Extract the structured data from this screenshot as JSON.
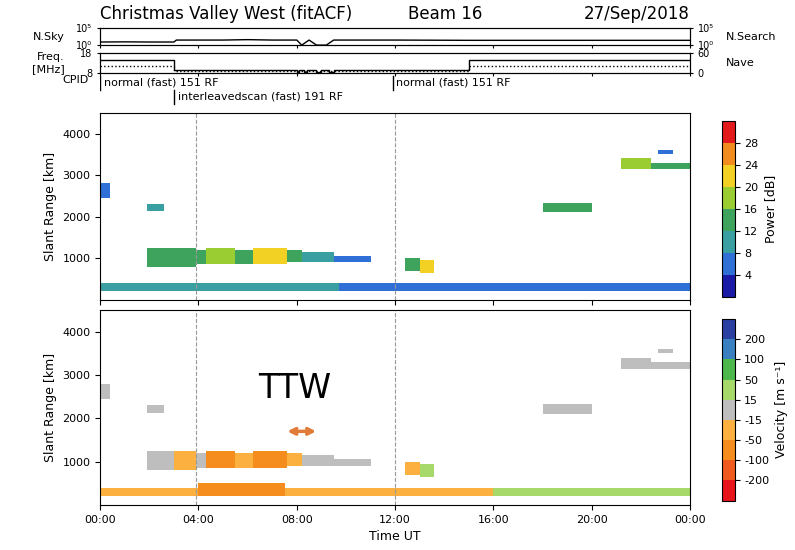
{
  "header": {
    "title": "Christmas Valley West (fitACF)",
    "subtitle": "Beam 16",
    "date": "27/Sep/2018"
  },
  "chart_data": [
    {
      "type": "line",
      "log": "y",
      "xlim": [
        0,
        24
      ],
      "xticks": [
        0,
        4,
        8,
        12,
        16,
        20,
        24
      ],
      "tick_labels": "y",
      "ylim": [
        1,
        100000
      ],
      "yticks": [
        {
          "value": 1,
          "label": "10⁰"
        },
        {
          "value": 100000,
          "label": "10⁵"
        }
      ],
      "y2lim": [
        1,
        100000
      ],
      "y2ticks": [
        {
          "value": 1,
          "label": "10⁰"
        },
        {
          "value": 100000,
          "label": "10⁵"
        }
      ],
      "y2label": "N.Search",
      "series": [
        {
          "name": "N.Sky",
          "color": "#000000",
          "line_style": "solid",
          "x": [
            0,
            1,
            2,
            3,
            3.1,
            5,
            6,
            7,
            8,
            8.2,
            8.5,
            8.8,
            9.2,
            9.5,
            12,
            15,
            18,
            21,
            24
          ],
          "values": [
            8,
            9,
            8,
            8,
            30,
            30,
            40,
            30,
            30,
            1,
            30,
            1,
            1,
            30,
            30,
            25,
            25,
            25,
            25
          ]
        }
      ]
    },
    {
      "type": "line",
      "xlim": [
        0,
        24
      ],
      "xticks": [
        0,
        4,
        8,
        12,
        16,
        20,
        24
      ],
      "tick_labels": "y",
      "ylim": [
        8,
        18
      ],
      "yticks": [
        8,
        18
      ],
      "y2lim": [
        0,
        60
      ],
      "y2ticks": [
        0,
        60
      ],
      "series": [
        {
          "name": "Freq.\n[MHz]",
          "color": "#000000",
          "type": "step",
          "line_style": "solid",
          "x": [
            0,
            3,
            8.0,
            8.1,
            8.3,
            8.4,
            8.8,
            9.0,
            9.3,
            9.5,
            15,
            24
          ],
          "values": [
            14.5,
            9.5,
            8.5,
            9.5,
            8.5,
            9.5,
            8.5,
            9.5,
            8.5,
            9.5,
            14.5,
            14.5
          ]
        },
        {
          "name": "Nave",
          "color": "#000000",
          "type": "step",
          "line_style": "dotted",
          "axis": "y2",
          "x": [
            0,
            3,
            15,
            24
          ],
          "values": [
            21,
            6,
            21,
            21
          ]
        }
      ]
    },
    {
      "type": "timeline",
      "label": "CPID",
      "xlim": [
        0,
        24
      ],
      "segments": [
        {
          "start": 0,
          "label": "normal (fast) 151 RF"
        },
        {
          "start": 3,
          "label": "interleavedscan (fast) 191 RF"
        },
        {
          "start": 11.9,
          "label": "normal (fast) 151 RF"
        }
      ]
    },
    {
      "type": "range_time",
      "ylabel": "Slant Range [km]",
      "xlim": [
        0,
        24
      ],
      "ylim": [
        0,
        4500
      ],
      "xticks": [
        {
          "value": 0,
          "label": "00:00"
        },
        {
          "value": 4,
          "label": "04:00"
        },
        {
          "value": 8,
          "label": "08:00"
        },
        {
          "value": 12,
          "label": "12:00"
        },
        {
          "value": 16,
          "label": "16:00"
        },
        {
          "value": 20,
          "label": "20:00"
        },
        {
          "value": 24,
          "label": "00:00"
        }
      ],
      "yticks": [
        1000,
        2000,
        3000,
        4000
      ],
      "tick_labels": "y",
      "cpid_changes": [
        3.9,
        12.0
      ],
      "colorbar": {
        "label": "Power [dB]",
        "boundaries": [
          0,
          4,
          8,
          12,
          16,
          20,
          24,
          28,
          32
        ],
        "ticks": [
          4,
          8,
          12,
          16,
          20,
          24,
          28
        ],
        "colors": [
          "#1a1aa6",
          "#2f6fd6",
          "#3a9fa0",
          "#3da35d",
          "#9acd32",
          "#f2d024",
          "#f28c1e",
          "#e31a1c"
        ]
      },
      "cells": [
        [
          0.0,
          0.4,
          2450,
          2800,
          6
        ],
        [
          1.9,
          2.6,
          2130,
          2300,
          10
        ],
        [
          1.9,
          3.0,
          800,
          1250,
          12
        ],
        [
          3.0,
          3.9,
          800,
          1250,
          14
        ],
        [
          3.9,
          4.3,
          850,
          1200,
          14
        ],
        [
          4.3,
          5.5,
          850,
          1250,
          18
        ],
        [
          5.5,
          6.2,
          850,
          1200,
          14
        ],
        [
          6.2,
          7.6,
          850,
          1250,
          20
        ],
        [
          7.6,
          8.2,
          900,
          1200,
          14
        ],
        [
          8.2,
          9.5,
          900,
          1150,
          10
        ],
        [
          9.5,
          11.0,
          900,
          1050,
          6
        ],
        [
          12.4,
          13.0,
          700,
          1000,
          14
        ],
        [
          13.0,
          13.6,
          650,
          950,
          22
        ],
        [
          18.0,
          20.0,
          2100,
          2330,
          12
        ],
        [
          21.2,
          22.4,
          3150,
          3400,
          16
        ],
        [
          22.4,
          24.0,
          3150,
          3300,
          12
        ],
        [
          22.7,
          23.3,
          3500,
          3600,
          6
        ],
        [
          0.0,
          9.7,
          200,
          400,
          10
        ],
        [
          9.7,
          24.0,
          200,
          400,
          6
        ]
      ]
    },
    {
      "type": "range_time",
      "ylabel": "Slant Range [km]",
      "xlabel": "Time UT",
      "xlim": [
        0,
        24
      ],
      "ylim": [
        0,
        4500
      ],
      "xticks": [
        {
          "value": 0,
          "label": "00:00"
        },
        {
          "value": 4,
          "label": "04:00"
        },
        {
          "value": 8,
          "label": "08:00"
        },
        {
          "value": 12,
          "label": "12:00"
        },
        {
          "value": 16,
          "label": "16:00"
        },
        {
          "value": 20,
          "label": "20:00"
        },
        {
          "value": 24,
          "label": "00:00"
        }
      ],
      "yticks": [
        1000,
        2000,
        3000,
        4000
      ],
      "cpid_changes": [
        3.9,
        12.0
      ],
      "colorbar": {
        "label": "Velocity [m s⁻¹]",
        "boundaries": [
          -300,
          -200,
          -100,
          -50,
          -15,
          15,
          50,
          100,
          200,
          300
        ],
        "ticks": [
          -200,
          -100,
          -50,
          -15,
          15,
          50,
          100,
          200
        ],
        "colors": [
          "#e8141c",
          "#f05a1e",
          "#f58c1e",
          "#fbb040",
          "#bebebe",
          "#a6d96a",
          "#4cb84c",
          "#3a7fbf",
          "#2b3fa2"
        ]
      },
      "cells": [
        [
          0.0,
          0.4,
          2450,
          2800,
          0
        ],
        [
          1.9,
          2.6,
          2130,
          2300,
          0
        ],
        [
          1.9,
          3.0,
          800,
          1250,
          0
        ],
        [
          3.0,
          3.9,
          800,
          1250,
          -20
        ],
        [
          3.9,
          4.3,
          850,
          1200,
          0
        ],
        [
          4.3,
          5.5,
          850,
          1250,
          -60
        ],
        [
          5.5,
          6.2,
          850,
          1200,
          -20
        ],
        [
          6.2,
          7.6,
          850,
          1250,
          -60
        ],
        [
          7.6,
          8.2,
          900,
          1200,
          -20
        ],
        [
          8.2,
          9.5,
          900,
          1150,
          0
        ],
        [
          9.5,
          11.0,
          900,
          1050,
          0
        ],
        [
          12.4,
          13.0,
          700,
          1000,
          -20
        ],
        [
          13.0,
          13.6,
          650,
          950,
          30
        ],
        [
          18.0,
          20.0,
          2100,
          2330,
          0
        ],
        [
          21.2,
          22.4,
          3150,
          3400,
          0
        ],
        [
          22.4,
          24.0,
          3150,
          3300,
          0
        ],
        [
          22.7,
          23.3,
          3500,
          3600,
          0
        ],
        [
          0.0,
          4.0,
          200,
          400,
          -30
        ],
        [
          4.0,
          7.5,
          200,
          500,
          -60
        ],
        [
          7.5,
          9.7,
          200,
          400,
          -30
        ],
        [
          9.7,
          16.0,
          200,
          400,
          -30
        ],
        [
          16.0,
          24.0,
          200,
          400,
          20
        ]
      ],
      "annotations": [
        {
          "text": "TTW",
          "x": 7.9,
          "y": 2300
        }
      ],
      "arrow": {
        "x0": 7.5,
        "x1": 8.9,
        "y": 1700,
        "color": "#e07b39"
      }
    }
  ]
}
